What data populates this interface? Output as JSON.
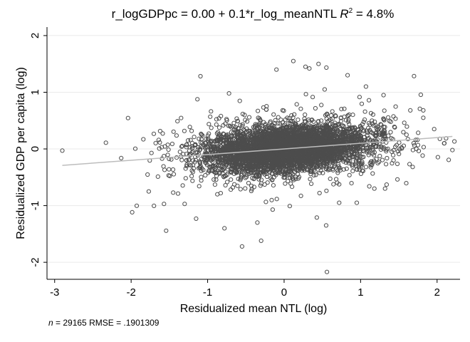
{
  "chart_data": {
    "type": "scatter",
    "title_equation": "r_logGDPpc = 0.00 + 0.1*r_log_meanNTL",
    "title_r2_symbol": "R",
    "title_r2_sup": "2",
    "title_r2_value": " = 4.8%",
    "xlabel": "Residualized mean NTL (log)",
    "ylabel": "Residualized GDP per capita (log)",
    "xlim": [
      -3.1,
      2.3
    ],
    "ylim": [
      -2.3,
      2.15
    ],
    "xticks": [
      -3,
      -2,
      -1,
      0,
      1,
      2
    ],
    "yticks": [
      -2,
      -1,
      0,
      1,
      2
    ],
    "grid": "horizontal",
    "fit_line": {
      "intercept": 0.0,
      "slope": 0.1,
      "x_range": [
        -2.9,
        2.2
      ]
    },
    "note_n_label": "n",
    "note_n_value": " = 29165",
    "note_rmse": "RMSE =  .1901309",
    "marker_color": "#4d4d4d",
    "line_color": "#bdbdbd",
    "outlier_points": [
      [
        -2.9,
        -0.03
      ],
      [
        -2.33,
        0.11
      ],
      [
        -1.84,
        0.17
      ],
      [
        -1.77,
        -0.75
      ],
      [
        -1.57,
        -0.97
      ],
      [
        -1.45,
        -0.77
      ],
      [
        -1.15,
        -1.23
      ],
      [
        -0.78,
        -1.4
      ],
      [
        -0.55,
        -1.72
      ],
      [
        -0.3,
        -1.62
      ],
      [
        -0.15,
        -1.07
      ],
      [
        -0.1,
        1.4
      ],
      [
        0.12,
        1.55
      ],
      [
        0.28,
        1.45
      ],
      [
        0.33,
        1.42
      ],
      [
        0.45,
        1.5
      ],
      [
        0.53,
        1.05
      ],
      [
        0.56,
        -2.17
      ],
      [
        0.55,
        -1.35
      ],
      [
        0.83,
        1.3
      ],
      [
        1.07,
        1.1
      ],
      [
        1.32,
        -0.7
      ],
      [
        1.3,
        0.95
      ],
      [
        1.65,
        0.68
      ],
      [
        1.82,
        0.68
      ],
      [
        1.82,
        0.55
      ],
      [
        2.2,
        -0.02
      ],
      [
        1.6,
        0.25
      ],
      [
        -0.72,
        0.98
      ],
      [
        0.95,
        -0.95
      ],
      [
        1.18,
        -0.7
      ],
      [
        -1.3,
        -0.97
      ],
      [
        -0.35,
        -1.3
      ],
      [
        0.72,
        -0.95
      ],
      [
        -1.6,
        0.03
      ]
    ]
  }
}
